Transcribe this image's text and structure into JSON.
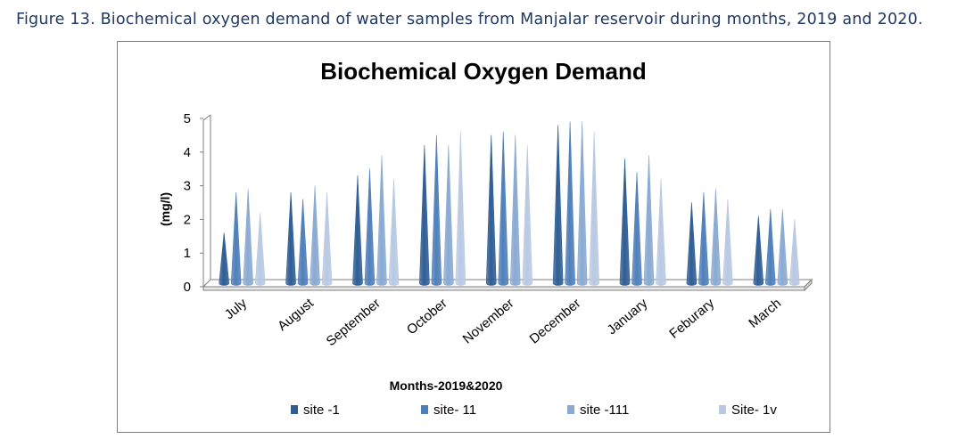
{
  "caption": {
    "figure_label": "Figure 13",
    "text": ". Biochemical oxygen demand of water samples from Manjalar reservoir during months, 2019 and 2020."
  },
  "colors": {
    "site1": "#2e5d94",
    "site11": "#4f7fba",
    "site111": "#8aaad2",
    "site1v": "#b9c9e2",
    "floor": "#ffffff",
    "axis": "#7f7f7f"
  },
  "chart_data": {
    "type": "bar",
    "shape": "cone-3d",
    "title": "Biochemical Oxygen Demand",
    "xlabel": "Months-2019&2020",
    "ylabel": "(mg/l)",
    "ylim": [
      0,
      5
    ],
    "yticks": [
      "0",
      "1",
      "2",
      "3",
      "4",
      "5"
    ],
    "categories": [
      "July",
      "August",
      "September",
      "October",
      "November",
      "December",
      "January",
      "Feburary",
      "March"
    ],
    "series": [
      {
        "name": "site -1",
        "values": [
          1.5,
          2.7,
          3.2,
          4.1,
          4.4,
          4.7,
          3.7,
          2.4,
          2.0
        ]
      },
      {
        "name": "site- 11",
        "values": [
          2.7,
          2.5,
          3.4,
          4.4,
          4.5,
          4.8,
          3.3,
          2.7,
          2.2
        ]
      },
      {
        "name": "site -111",
        "values": [
          2.8,
          2.9,
          3.8,
          4.1,
          4.4,
          4.8,
          3.8,
          2.8,
          2.2
        ]
      },
      {
        "name": "Site- 1v",
        "values": [
          2.1,
          2.7,
          3.1,
          4.5,
          4.1,
          4.5,
          3.1,
          2.5,
          1.9
        ]
      }
    ],
    "legend_position": "bottom",
    "grid": false
  }
}
